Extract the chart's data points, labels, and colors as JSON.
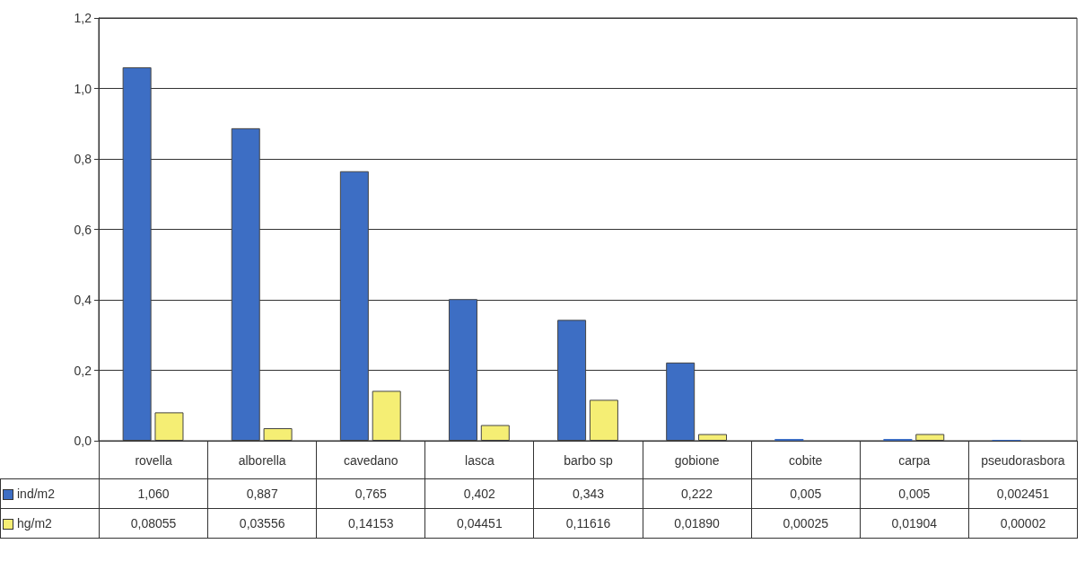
{
  "chart_data": {
    "type": "bar",
    "categories": [
      "rovella",
      "alborella",
      "cavedano",
      "lasca",
      "barbo sp",
      "gobione",
      "cobite",
      "carpa",
      "pseudorasbora"
    ],
    "series": [
      {
        "name": "ind/m2",
        "color": "#3d6ec4",
        "values": [
          1.06,
          0.887,
          0.765,
          0.402,
          0.343,
          0.222,
          0.005,
          0.005,
          0.002451
        ],
        "value_labels": [
          "1,060",
          "0,887",
          "0,765",
          "0,402",
          "0,343",
          "0,222",
          "0,005",
          "0,005",
          "0,002451"
        ]
      },
      {
        "name": "hg/m2",
        "color": "#f5ee74",
        "values": [
          0.08055,
          0.03556,
          0.14153,
          0.04451,
          0.11616,
          0.0189,
          0.00025,
          0.01904,
          2e-05
        ],
        "value_labels": [
          "0,08055",
          "0,03556",
          "0,14153",
          "0,04451",
          "0,11616",
          "0,01890",
          "0,00025",
          "0,01904",
          "0,00002"
        ]
      }
    ],
    "ylim": [
      0,
      1.2
    ],
    "yticks": [
      {
        "value": 0,
        "label": "0,0"
      },
      {
        "value": 0.2,
        "label": "0,2"
      },
      {
        "value": 0.4,
        "label": "0,4"
      },
      {
        "value": 0.6,
        "label": "0,6"
      },
      {
        "value": 0.8,
        "label": "0,8"
      },
      {
        "value": 1.0,
        "label": "1,0"
      },
      {
        "value": 1.2,
        "label": "1,2"
      }
    ],
    "grid": "y",
    "legend": "bottom left"
  }
}
